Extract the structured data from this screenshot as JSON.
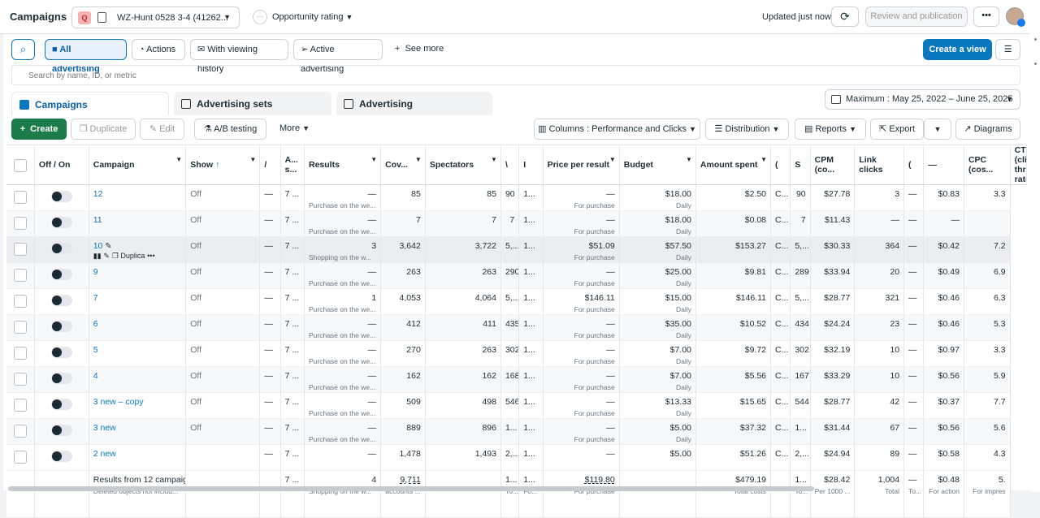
{
  "header": {
    "title": "Campaigns",
    "account_badge": "Q",
    "account_name": "WZ-Hunt 0528 3-4 (41262...",
    "opportunity_label": "Opportunity rating",
    "updated_text": "Updated just now",
    "review_label": "Review and publication",
    "more_label": "•••"
  },
  "toolbar": {
    "all_advertising": "All advertising",
    "actions": "Actions",
    "with_viewing_history": "With viewing history",
    "active_advertising": "Active advertising",
    "see_more": "See more",
    "create_view": "Create a view",
    "search_placeholder": "Search by name, ID, or metric"
  },
  "tabs": [
    "Campaigns",
    "Advertising sets",
    "Advertising"
  ],
  "date_range": "Maximum : May 25, 2022 – June 25, 2025",
  "actions_bar": {
    "create": "Create",
    "duplicate": "Duplicate",
    "edit": "Edit",
    "ab_testing": "A/B testing",
    "more": "More",
    "columns": "Columns : Performance and Clicks",
    "distribution": "Distribution",
    "reports": "Reports",
    "export": "Export",
    "diagrams": "Diagrams"
  },
  "columns": [
    "Off / On",
    "Campaign",
    "Show",
    "/",
    "A... s...",
    "Results",
    "Cov...",
    "Spectators",
    "\\",
    "I",
    "Price per result",
    "Budget",
    "Amount spent",
    "(",
    "S",
    "CPM (co...",
    "Link clicks",
    "(",
    "—",
    "CPC (cos...",
    "CTR (click-through rate)"
  ],
  "rows": [
    {
      "name": "12",
      "show": "Off",
      "c4": "—",
      "c5": "7 ...",
      "res": "—",
      "res_sub": "Purchase on the we...",
      "cov": "85",
      "spec": "85",
      "c9": "90",
      "c10": "1...",
      "ppr": "—",
      "ppr_sub": "For purchase",
      "budget": "$18.00",
      "budget_sub": "Daily",
      "spent": "$2.50",
      "c14": "C...",
      "c15": "90",
      "cpm": "$27.78",
      "link": "3",
      "c18": "—",
      "cpc": "$0.83",
      "ctr": "3.3"
    },
    {
      "name": "11",
      "show": "Off",
      "c4": "—",
      "c5": "7 ...",
      "res": "—",
      "res_sub": "Purchase on the we...",
      "cov": "7",
      "spec": "7",
      "c9": "7",
      "c10": "1...",
      "ppr": "—",
      "ppr_sub": "For purchase",
      "budget": "$18.00",
      "budget_sub": "Daily",
      "spent": "$0.08",
      "c14": "C...",
      "c15": "7",
      "cpm": "$11.43",
      "link": "—",
      "c18": "—",
      "cpc": "—",
      "ctr": ""
    },
    {
      "name": "10",
      "show": "Off",
      "c4": "—",
      "c5": "7 ...",
      "res": "3",
      "res_sub": "Shopping on the w...",
      "cov": "3,642",
      "spec": "3,722",
      "c9": "5,...",
      "c10": "1...",
      "ppr": "$51.09",
      "ppr_sub": "For purchase",
      "budget": "$57.50",
      "budget_sub": "Daily",
      "spent": "$153.27",
      "c14": "C...",
      "c15": "5,...",
      "cpm": "$30.33",
      "link": "364",
      "c18": "—",
      "cpc": "$0.42",
      "ctr": "7.2"
    },
    {
      "name": "9",
      "show": "Off",
      "c4": "—",
      "c5": "7 ...",
      "res": "—",
      "res_sub": "Purchase on the we...",
      "cov": "263",
      "spec": "263",
      "c9": "290",
      "c10": "1...",
      "ppr": "—",
      "ppr_sub": "For purchase",
      "budget": "$25.00",
      "budget_sub": "Daily",
      "spent": "$9.81",
      "c14": "C...",
      "c15": "289",
      "cpm": "$33.94",
      "link": "20",
      "c18": "—",
      "cpc": "$0.49",
      "ctr": "6.9"
    },
    {
      "name": "7",
      "show": "Off",
      "c4": "—",
      "c5": "7 ...",
      "res": "1",
      "res_sub": "Purchase on the we...",
      "cov": "4,053",
      "spec": "4,064",
      "c9": "5,...",
      "c10": "1...",
      "ppr": "$146.11",
      "ppr_sub": "For purchase",
      "budget": "$15.00",
      "budget_sub": "Daily",
      "spent": "$146.11",
      "c14": "C...",
      "c15": "5,...",
      "cpm": "$28.77",
      "link": "321",
      "c18": "—",
      "cpc": "$0.46",
      "ctr": "6.3"
    },
    {
      "name": "6",
      "show": "Off",
      "c4": "—",
      "c5": "7 ...",
      "res": "—",
      "res_sub": "Purchase on the we...",
      "cov": "412",
      "spec": "411",
      "c9": "435",
      "c10": "1...",
      "ppr": "—",
      "ppr_sub": "For purchase",
      "budget": "$35.00",
      "budget_sub": "Daily",
      "spent": "$10.52",
      "c14": "C...",
      "c15": "434",
      "cpm": "$24.24",
      "link": "23",
      "c18": "—",
      "cpc": "$0.46",
      "ctr": "5.3"
    },
    {
      "name": "5",
      "show": "Off",
      "c4": "—",
      "c5": "7 ...",
      "res": "—",
      "res_sub": "Purchase on the we...",
      "cov": "270",
      "spec": "263",
      "c9": "302",
      "c10": "1...",
      "ppr": "—",
      "ppr_sub": "For purchase",
      "budget": "$7.00",
      "budget_sub": "Daily",
      "spent": "$9.72",
      "c14": "C...",
      "c15": "302",
      "cpm": "$32.19",
      "link": "10",
      "c18": "—",
      "cpc": "$0.97",
      "ctr": "3.3"
    },
    {
      "name": "4",
      "show": "Off",
      "c4": "—",
      "c5": "7 ...",
      "res": "—",
      "res_sub": "Purchase on the we...",
      "cov": "162",
      "spec": "162",
      "c9": "168",
      "c10": "1...",
      "ppr": "—",
      "ppr_sub": "For purchase",
      "budget": "$7.00",
      "budget_sub": "Daily",
      "spent": "$5.56",
      "c14": "C...",
      "c15": "167",
      "cpm": "$33.29",
      "link": "10",
      "c18": "—",
      "cpc": "$0.56",
      "ctr": "5.9"
    },
    {
      "name": "3 new – copy",
      "show": "Off",
      "c4": "—",
      "c5": "7 ...",
      "res": "—",
      "res_sub": "Purchase on the we...",
      "cov": "509",
      "spec": "498",
      "c9": "546",
      "c10": "1...",
      "ppr": "—",
      "ppr_sub": "For purchase",
      "budget": "$13.33",
      "budget_sub": "Daily",
      "spent": "$15.65",
      "c14": "C...",
      "c15": "544",
      "cpm": "$28.77",
      "link": "42",
      "c18": "—",
      "cpc": "$0.37",
      "ctr": "7.7"
    },
    {
      "name": "3 new",
      "show": "Off",
      "c4": "—",
      "c5": "7 ...",
      "res": "—",
      "res_sub": "Purchase on the we...",
      "cov": "889",
      "spec": "896",
      "c9": "1...",
      "c10": "1...",
      "ppr": "—",
      "ppr_sub": "For purchase",
      "budget": "$5.00",
      "budget_sub": "Daily",
      "spent": "$37.32",
      "c14": "C...",
      "c15": "1...",
      "cpm": "$31.44",
      "link": "67",
      "c18": "—",
      "cpc": "$0.56",
      "ctr": "5.6"
    },
    {
      "name": "2 new",
      "show": "",
      "c4": "—",
      "c5": "7 ...",
      "res": "—",
      "res_sub": "",
      "cov": "1,478",
      "spec": "1,493",
      "c9": "2,...",
      "c10": "1...",
      "ppr": "—",
      "ppr_sub": "",
      "budget": "$5.00",
      "budget_sub": "",
      "spent": "$51.26",
      "c14": "C...",
      "c15": "2,...",
      "cpm": "$24.94",
      "link": "89",
      "c18": "—",
      "cpc": "$0.58",
      "ctr": "4.3"
    }
  ],
  "row_actions": {
    "duplicate": "Duplica"
  },
  "totals": {
    "label": "Results from 12 campaig",
    "sub": "Deleted objects not includ...",
    "c5": "7 ...",
    "res": "4",
    "res_sub": "Shopping on the w...",
    "cov": "9,711",
    "cov_sub": "accounts ...",
    "c9": "1...",
    "c9_sub": "To...",
    "c10": "1...",
    "c10_sub": "Fo...",
    "ppr": "$119.80",
    "ppr_sub": "For purchase",
    "spent": "$479.19",
    "spent_sub": "Total costs",
    "c15": "1...",
    "c15_sub": "To...",
    "cpm": "$28.42",
    "cpm_sub": "Per 1000 ...",
    "link": "1,004",
    "link_sub": "Total",
    "c18": "—",
    "c18_sub": "To...",
    "cpc": "$0.48",
    "cpc_sub": "For action",
    "ctr": "5.",
    "ctr_sub": "For impres"
  },
  "colors": {
    "primary": "#0a78be",
    "create": "#1b7b49",
    "text": "#1c2b33"
  }
}
